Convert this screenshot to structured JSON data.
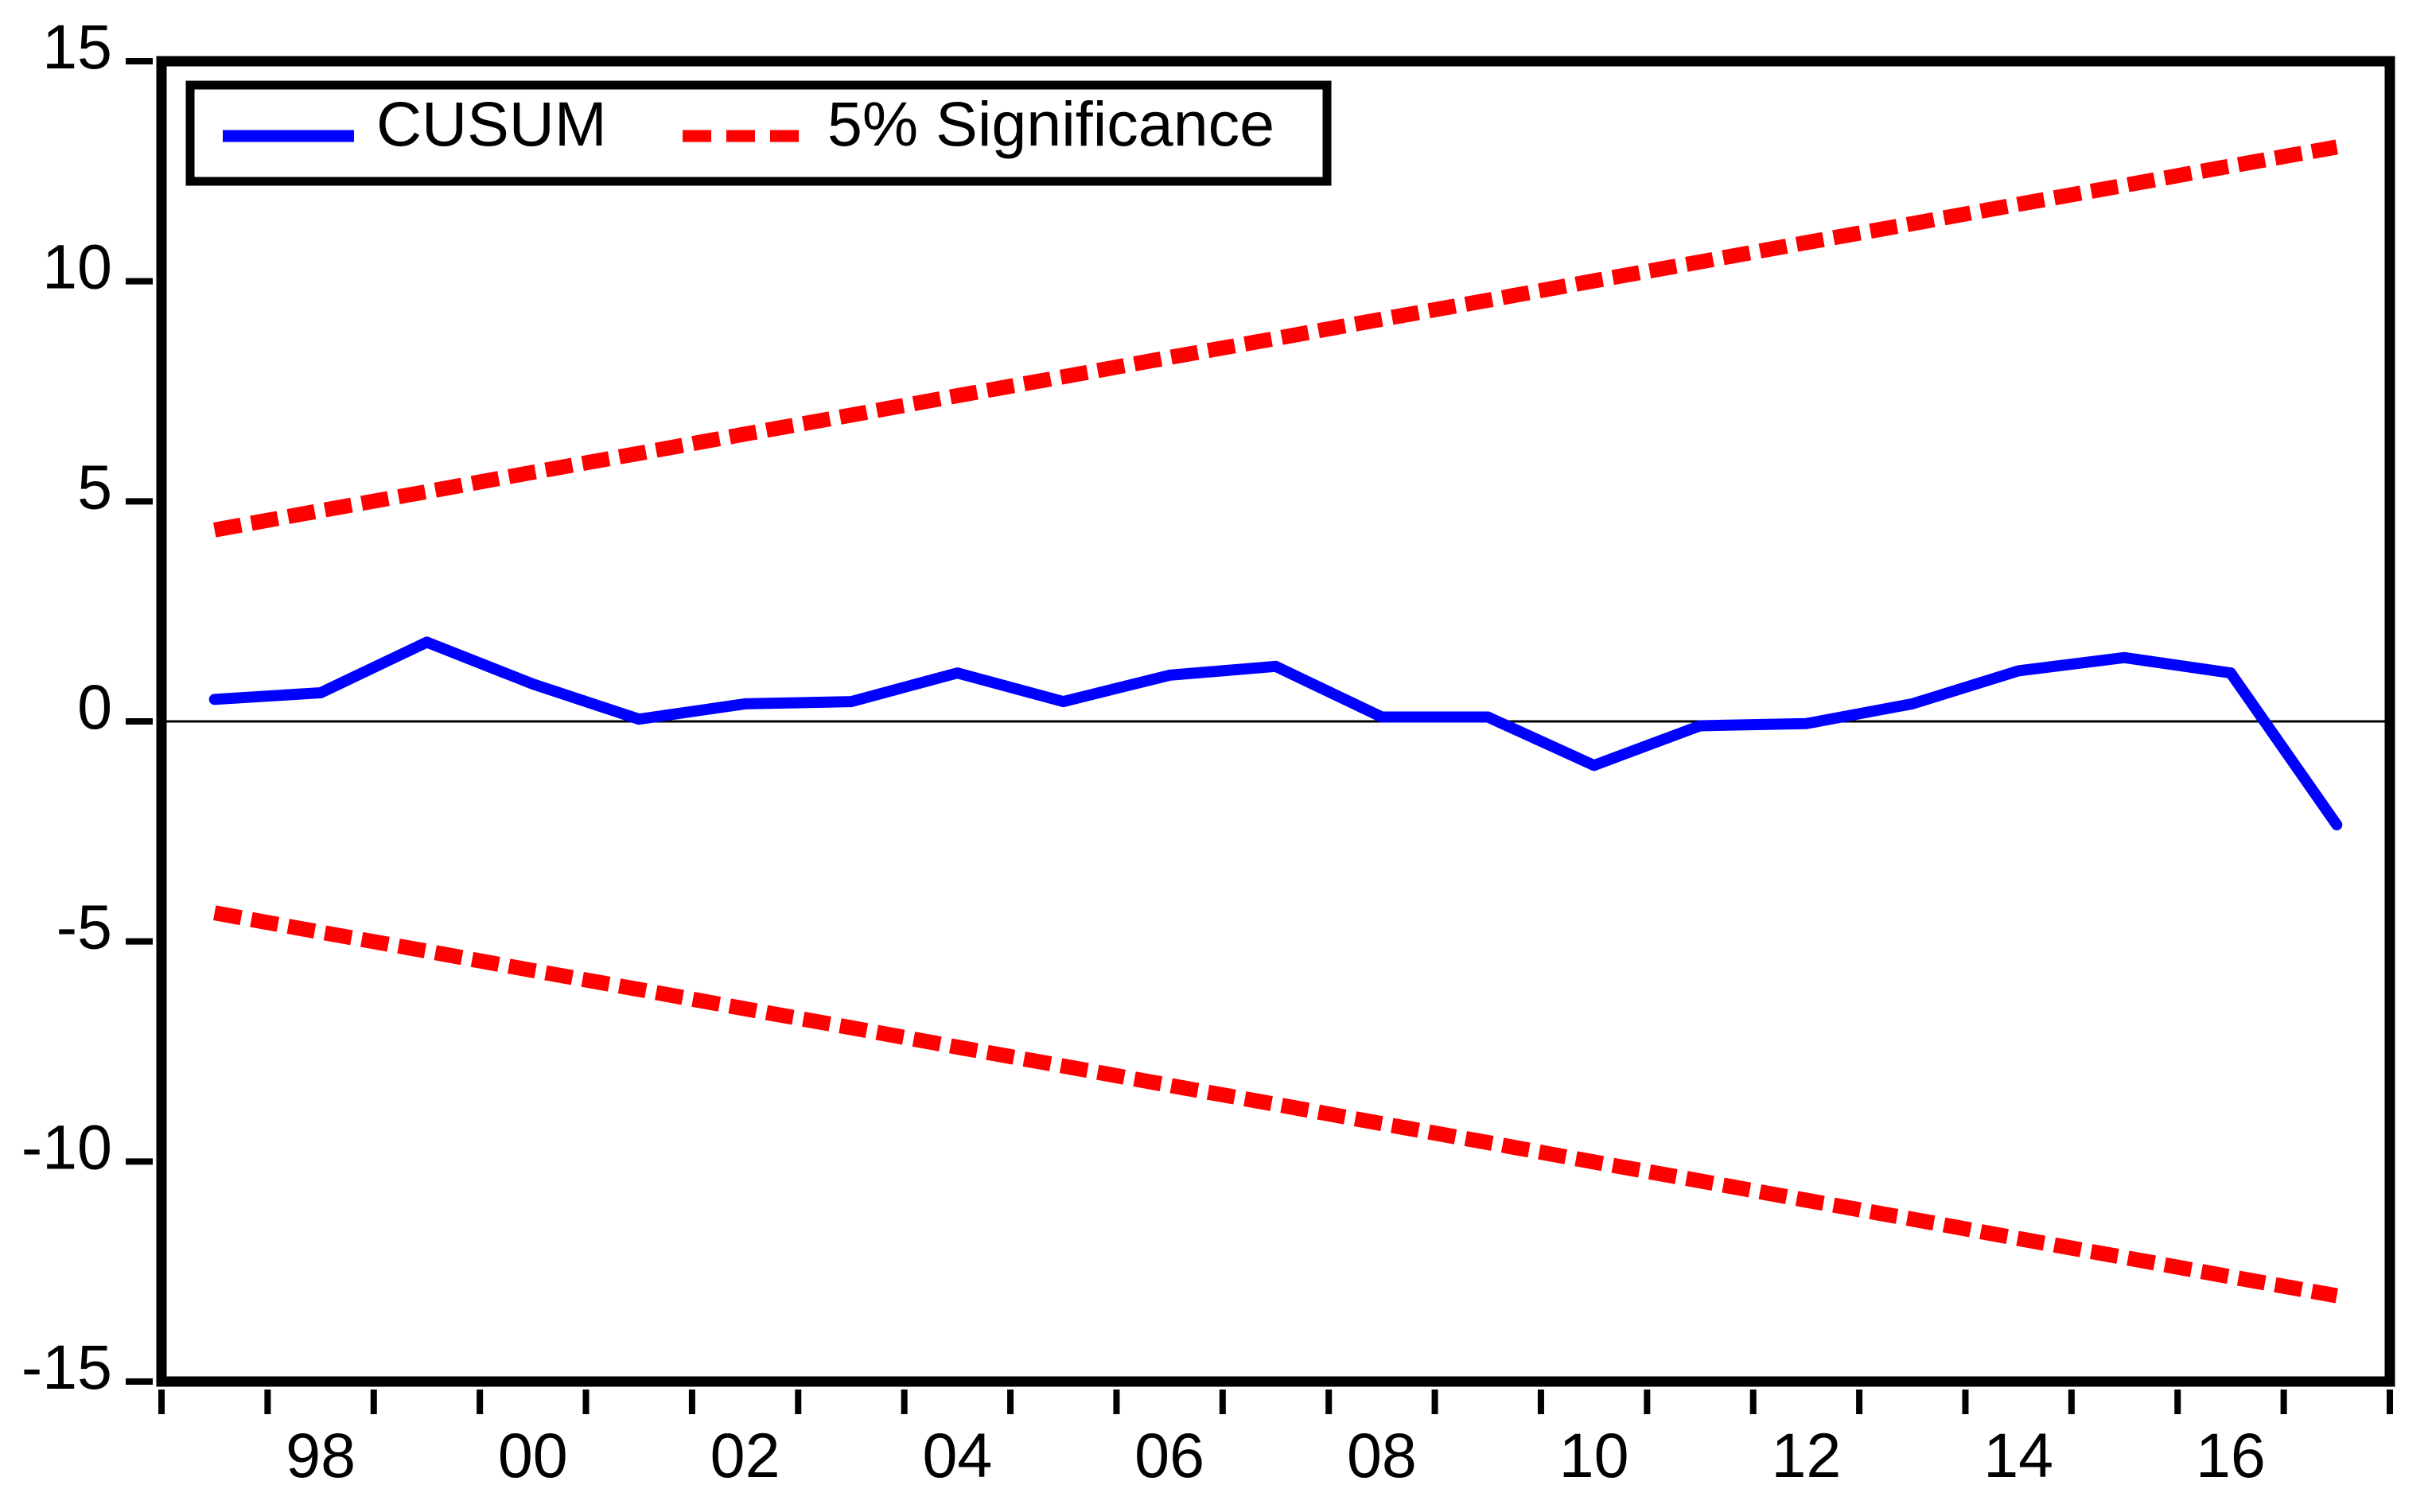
{
  "figure": {
    "background_color": "#ffffff",
    "frame_color": "#000000",
    "kind": "CUSUM stability test plot"
  },
  "chart_data": {
    "type": "line",
    "title": "",
    "xlabel": "",
    "ylabel": "",
    "grid": false,
    "zero_line": true,
    "ylim": [
      -15,
      15
    ],
    "y_ticks": [
      15,
      10,
      5,
      0,
      -5,
      -10,
      -15
    ],
    "x": [
      1997,
      1998,
      1999,
      2000,
      2001,
      2002,
      2003,
      2004,
      2005,
      2006,
      2007,
      2008,
      2009,
      2010,
      2011,
      2012,
      2013,
      2014,
      2015,
      2016,
      2017
    ],
    "x_tick_labels": [
      {
        "year": 1998,
        "label": "98"
      },
      {
        "year": 2000,
        "label": "00"
      },
      {
        "year": 2002,
        "label": "02"
      },
      {
        "year": 2004,
        "label": "04"
      },
      {
        "year": 2006,
        "label": "06"
      },
      {
        "year": 2008,
        "label": "08"
      },
      {
        "year": 2010,
        "label": "10"
      },
      {
        "year": 2012,
        "label": "12"
      },
      {
        "year": 2014,
        "label": "14"
      },
      {
        "year": 2016,
        "label": "16"
      }
    ],
    "legend": {
      "position": "top-left",
      "entries": [
        {
          "label": "CUSUM",
          "color": "#0000ff",
          "line_style": "solid"
        },
        {
          "label": "5% Significance",
          "color": "#ff0000",
          "line_style": "dashed"
        }
      ]
    },
    "series": [
      {
        "id": "cusum",
        "name": "CUSUM",
        "color": "#0000ff",
        "line_style": "solid",
        "values": [
          0.5,
          0.65,
          1.8,
          0.85,
          0.05,
          0.4,
          0.45,
          1.1,
          0.45,
          1.05,
          1.25,
          0.1,
          0.1,
          -1.0,
          -0.1,
          -0.05,
          0.4,
          1.15,
          1.45,
          1.1,
          -2.35
        ]
      },
      {
        "id": "significance-upper",
        "name": "5% Significance (upper bound)",
        "color": "#ff0000",
        "line_style": "dashed",
        "values": [
          4.35,
          4.79,
          5.22,
          5.66,
          6.09,
          6.53,
          6.96,
          7.4,
          7.83,
          8.27,
          8.7,
          9.14,
          9.57,
          10.01,
          10.44,
          10.88,
          11.31,
          11.75,
          12.18,
          12.62,
          13.05
        ]
      },
      {
        "id": "significance-lower",
        "name": "5% Significance (lower bound)",
        "color": "#ff0000",
        "line_style": "dashed",
        "values": [
          -4.35,
          -4.79,
          -5.22,
          -5.66,
          -6.09,
          -6.53,
          -6.96,
          -7.4,
          -7.83,
          -8.27,
          -8.7,
          -9.14,
          -9.57,
          -10.01,
          -10.44,
          -10.88,
          -11.31,
          -11.75,
          -12.18,
          -12.62,
          -13.05
        ]
      }
    ]
  }
}
